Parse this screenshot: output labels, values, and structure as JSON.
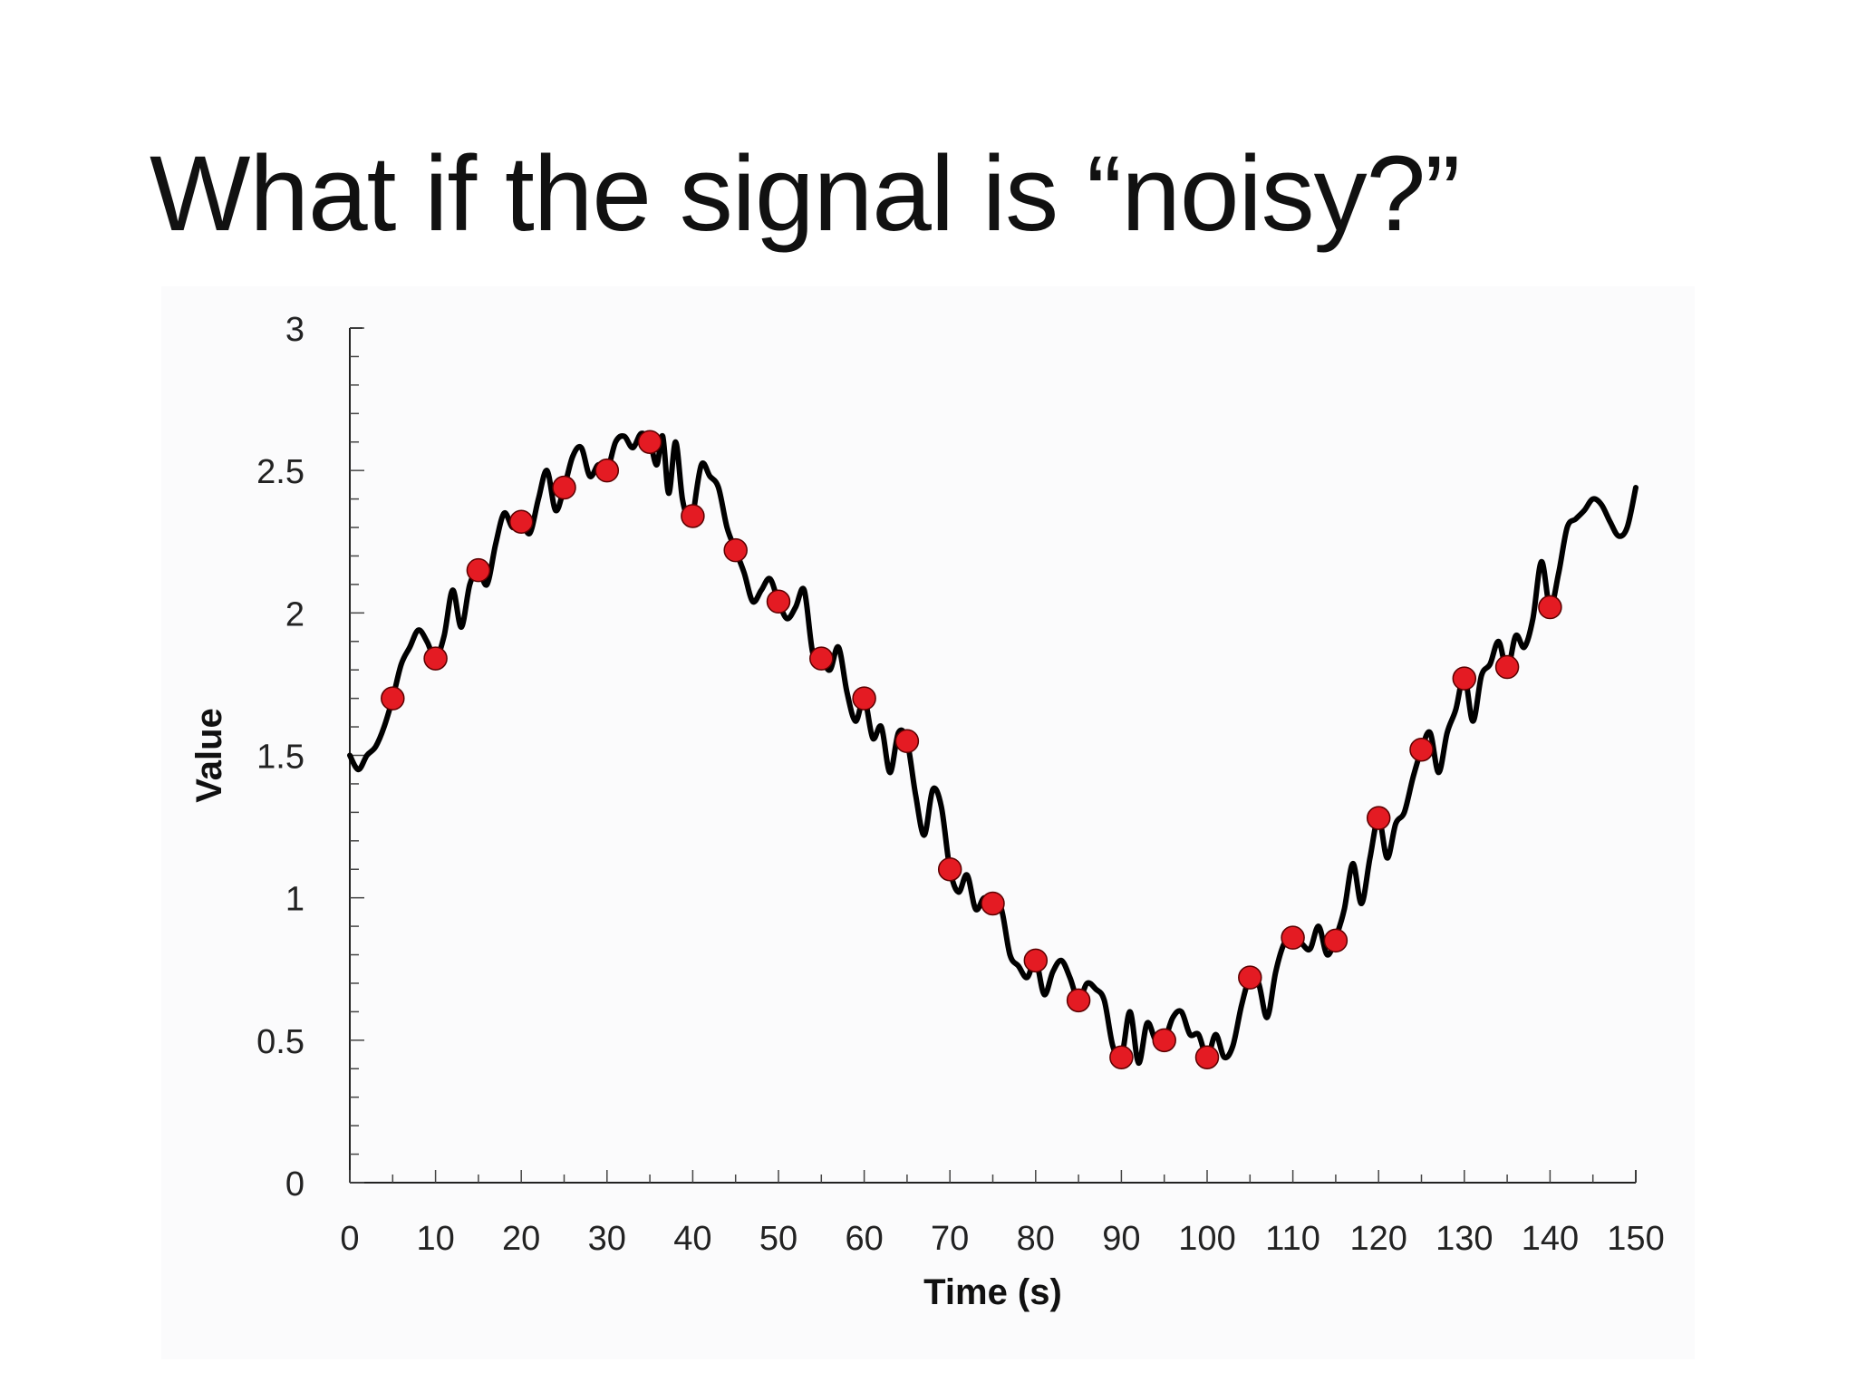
{
  "slide": {
    "title": "What if the signal is “noisy?”"
  },
  "chart_data": {
    "type": "line",
    "title": "",
    "xlabel": "Time (s)",
    "ylabel": "Value",
    "xlim": [
      0,
      150
    ],
    "ylim": [
      0,
      3
    ],
    "x_ticks": [
      0,
      10,
      20,
      30,
      40,
      50,
      60,
      70,
      80,
      90,
      100,
      110,
      120,
      130,
      140,
      150
    ],
    "x_tick_labels": [
      "0",
      "10",
      "20",
      "30",
      "40",
      "50",
      "60",
      "70",
      "80",
      "90",
      "100",
      "110",
      "120",
      "130",
      "140",
      "150"
    ],
    "y_ticks": [
      0,
      0.5,
      1,
      1.5,
      2,
      2.5,
      3
    ],
    "y_tick_labels": [
      "0",
      "0.5",
      "1",
      "1.5",
      "2",
      "2.5",
      "3"
    ],
    "grid": false,
    "legend": "none",
    "series": [
      {
        "kind": "line",
        "color": "#000000",
        "points": [
          [
            0,
            1.5
          ],
          [
            1,
            1.45
          ],
          [
            2,
            1.5
          ],
          [
            3,
            1.53
          ],
          [
            4,
            1.6
          ],
          [
            5,
            1.7
          ],
          [
            6,
            1.82
          ],
          [
            7,
            1.88
          ],
          [
            8,
            1.94
          ],
          [
            9,
            1.9
          ],
          [
            10,
            1.84
          ],
          [
            11,
            1.92
          ],
          [
            12,
            2.08
          ],
          [
            13,
            1.95
          ],
          [
            14,
            2.1
          ],
          [
            15,
            2.15
          ],
          [
            16,
            2.1
          ],
          [
            17,
            2.24
          ],
          [
            18,
            2.35
          ],
          [
            19,
            2.3
          ],
          [
            20,
            2.32
          ],
          [
            21,
            2.28
          ],
          [
            22,
            2.4
          ],
          [
            23,
            2.5
          ],
          [
            24,
            2.36
          ],
          [
            25,
            2.44
          ],
          [
            26,
            2.55
          ],
          [
            27,
            2.58
          ],
          [
            28,
            2.48
          ],
          [
            29,
            2.52
          ],
          [
            30,
            2.5
          ],
          [
            31,
            2.6
          ],
          [
            32,
            2.62
          ],
          [
            33,
            2.58
          ],
          [
            34,
            2.63
          ],
          [
            35,
            2.6
          ],
          [
            35.8,
            2.52
          ],
          [
            36.5,
            2.62
          ],
          [
            37.2,
            2.42
          ],
          [
            38,
            2.6
          ],
          [
            38.8,
            2.4
          ],
          [
            39.6,
            2.32
          ],
          [
            40,
            2.34
          ],
          [
            41,
            2.52
          ],
          [
            42,
            2.48
          ],
          [
            43,
            2.44
          ],
          [
            44,
            2.3
          ],
          [
            45,
            2.22
          ],
          [
            46,
            2.14
          ],
          [
            47,
            2.04
          ],
          [
            48,
            2.08
          ],
          [
            49,
            2.12
          ],
          [
            50,
            2.04
          ],
          [
            51,
            1.98
          ],
          [
            52,
            2.02
          ],
          [
            53,
            2.08
          ],
          [
            54,
            1.86
          ],
          [
            55,
            1.84
          ],
          [
            56,
            1.8
          ],
          [
            57,
            1.88
          ],
          [
            58,
            1.72
          ],
          [
            59,
            1.62
          ],
          [
            60,
            1.7
          ],
          [
            61,
            1.56
          ],
          [
            62,
            1.6
          ],
          [
            63,
            1.44
          ],
          [
            64,
            1.58
          ],
          [
            65,
            1.55
          ],
          [
            66,
            1.36
          ],
          [
            67,
            1.22
          ],
          [
            68,
            1.38
          ],
          [
            69,
            1.32
          ],
          [
            70,
            1.1
          ],
          [
            71,
            1.02
          ],
          [
            72,
            1.08
          ],
          [
            73,
            0.96
          ],
          [
            74,
            1.0
          ],
          [
            75,
            0.98
          ],
          [
            76,
            0.96
          ],
          [
            77,
            0.8
          ],
          [
            78,
            0.76
          ],
          [
            79,
            0.72
          ],
          [
            80,
            0.78
          ],
          [
            81,
            0.66
          ],
          [
            82,
            0.74
          ],
          [
            83,
            0.78
          ],
          [
            84,
            0.72
          ],
          [
            85,
            0.64
          ],
          [
            86,
            0.7
          ],
          [
            87,
            0.68
          ],
          [
            88,
            0.64
          ],
          [
            89,
            0.48
          ],
          [
            90,
            0.44
          ],
          [
            91,
            0.6
          ],
          [
            92,
            0.42
          ],
          [
            93,
            0.56
          ],
          [
            94,
            0.5
          ],
          [
            95,
            0.5
          ],
          [
            96,
            0.58
          ],
          [
            97,
            0.6
          ],
          [
            98,
            0.52
          ],
          [
            99,
            0.52
          ],
          [
            100,
            0.44
          ],
          [
            101,
            0.52
          ],
          [
            102,
            0.44
          ],
          [
            103,
            0.48
          ],
          [
            104,
            0.62
          ],
          [
            105,
            0.72
          ],
          [
            106,
            0.7
          ],
          [
            107,
            0.58
          ],
          [
            108,
            0.74
          ],
          [
            109,
            0.84
          ],
          [
            110,
            0.86
          ],
          [
            111,
            0.84
          ],
          [
            112,
            0.82
          ],
          [
            113,
            0.9
          ],
          [
            114,
            0.8
          ],
          [
            115,
            0.86
          ],
          [
            116,
            0.96
          ],
          [
            117,
            1.12
          ],
          [
            118,
            0.98
          ],
          [
            119,
            1.14
          ],
          [
            120,
            1.28
          ],
          [
            121,
            1.14
          ],
          [
            122,
            1.26
          ],
          [
            123,
            1.3
          ],
          [
            124,
            1.42
          ],
          [
            125,
            1.52
          ],
          [
            126,
            1.58
          ],
          [
            127,
            1.44
          ],
          [
            128,
            1.58
          ],
          [
            129,
            1.66
          ],
          [
            130,
            1.78
          ],
          [
            131,
            1.62
          ],
          [
            132,
            1.78
          ],
          [
            133,
            1.82
          ],
          [
            134,
            1.9
          ],
          [
            135,
            1.8
          ],
          [
            136,
            1.92
          ],
          [
            137,
            1.88
          ],
          [
            138,
            1.98
          ],
          [
            139,
            2.18
          ],
          [
            140,
            2.02
          ],
          [
            141,
            2.14
          ],
          [
            142,
            2.3
          ],
          [
            143,
            2.33
          ],
          [
            144,
            2.36
          ],
          [
            145,
            2.4
          ],
          [
            146,
            2.38
          ],
          [
            147,
            2.32
          ],
          [
            148,
            2.27
          ],
          [
            149,
            2.3
          ],
          [
            150,
            2.44
          ]
        ]
      },
      {
        "kind": "scatter",
        "color": "#e41b23",
        "points": [
          [
            5,
            1.7
          ],
          [
            10,
            1.84
          ],
          [
            15,
            2.15
          ],
          [
            20,
            2.32
          ],
          [
            25,
            2.44
          ],
          [
            30,
            2.5
          ],
          [
            35,
            2.6
          ],
          [
            40,
            2.34
          ],
          [
            45,
            2.22
          ],
          [
            50,
            2.04
          ],
          [
            55,
            1.84
          ],
          [
            60,
            1.7
          ],
          [
            65,
            1.55
          ],
          [
            70,
            1.1
          ],
          [
            75,
            0.98
          ],
          [
            80,
            0.78
          ],
          [
            85,
            0.64
          ],
          [
            90,
            0.44
          ],
          [
            95,
            0.5
          ],
          [
            100,
            0.44
          ],
          [
            105,
            0.72
          ],
          [
            110,
            0.86
          ],
          [
            115,
            0.85
          ],
          [
            120,
            1.28
          ],
          [
            125,
            1.52
          ],
          [
            130,
            1.77
          ],
          [
            135,
            1.81
          ],
          [
            140,
            2.02
          ]
        ]
      }
    ]
  }
}
